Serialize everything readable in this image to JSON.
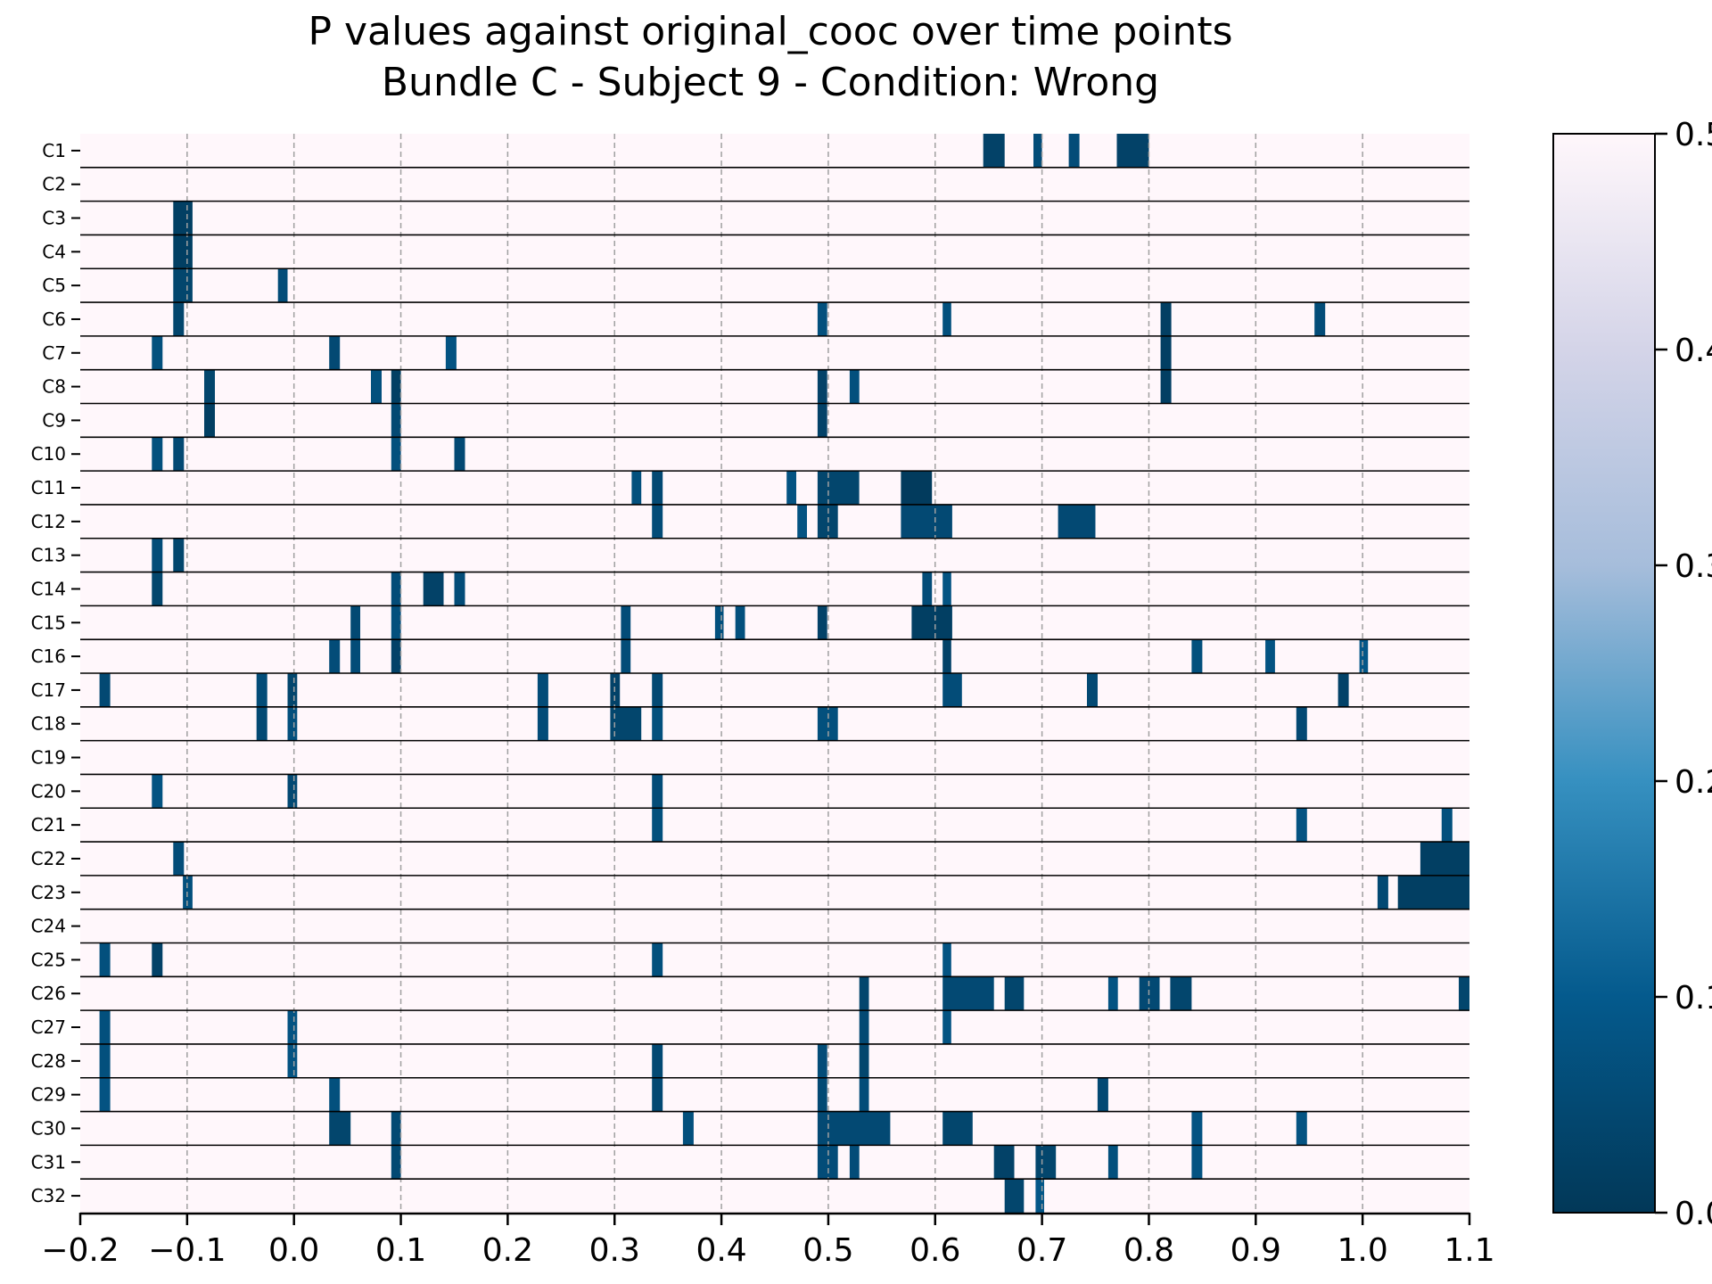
{
  "chart_data": {
    "type": "heatmap",
    "title_line1": "P values against original_cooc over time points",
    "title_line2": "Bundle C - Subject 9 - Condition: Wrong",
    "xlim": [
      -0.2,
      1.1
    ],
    "xticks": [
      "−0.2",
      "−0.1",
      "0.0",
      "0.1",
      "0.2",
      "0.3",
      "0.4",
      "0.5",
      "0.6",
      "0.7",
      "0.8",
      "0.9",
      "1.0",
      "1.1"
    ],
    "xtick_values": [
      -0.2,
      -0.1,
      0.0,
      0.1,
      0.2,
      0.3,
      0.4,
      0.5,
      0.6,
      0.7,
      0.8,
      0.9,
      1.0,
      1.1
    ],
    "grid": "vertical dashed at x ticks",
    "colorbar": {
      "colormap": "PuBu_r",
      "vmin": 0.0,
      "vmax": 0.5,
      "ticks": [
        "0.0",
        "0.1",
        "0.2",
        "0.3",
        "0.4",
        "0.5"
      ],
      "tick_values": [
        0.0,
        0.1,
        0.2,
        0.3,
        0.4,
        0.5
      ]
    },
    "rows": [
      {
        "label": "C1",
        "cells": [
          [
            0.645,
            0.665,
            0.03
          ],
          [
            0.692,
            0.7,
            0.06
          ],
          [
            0.725,
            0.735,
            0.06
          ],
          [
            0.77,
            0.8,
            0.03
          ]
        ]
      },
      {
        "label": "C2",
        "cells": []
      },
      {
        "label": "C3",
        "cells": [
          [
            -0.113,
            -0.095,
            0.02
          ]
        ]
      },
      {
        "label": "C4",
        "cells": [
          [
            -0.113,
            -0.095,
            0.02
          ]
        ]
      },
      {
        "label": "C5",
        "cells": [
          [
            -0.113,
            -0.095,
            0.04
          ],
          [
            -0.015,
            -0.006,
            0.06
          ]
        ]
      },
      {
        "label": "C6",
        "cells": [
          [
            -0.113,
            -0.103,
            0.04
          ],
          [
            0.49,
            0.499,
            0.07
          ],
          [
            0.607,
            0.615,
            0.07
          ],
          [
            0.811,
            0.821,
            0.02
          ],
          [
            0.955,
            0.965,
            0.06
          ]
        ]
      },
      {
        "label": "C7",
        "cells": [
          [
            -0.133,
            -0.123,
            0.07
          ],
          [
            0.033,
            0.043,
            0.05
          ],
          [
            0.142,
            0.152,
            0.08
          ],
          [
            0.811,
            0.821,
            0.02
          ]
        ]
      },
      {
        "label": "C8",
        "cells": [
          [
            -0.084,
            -0.074,
            0.04
          ],
          [
            0.072,
            0.082,
            0.07
          ],
          [
            0.091,
            0.1,
            0.02
          ],
          [
            0.49,
            0.499,
            0.03
          ],
          [
            0.52,
            0.529,
            0.07
          ],
          [
            0.811,
            0.821,
            0.02
          ]
        ]
      },
      {
        "label": "C9",
        "cells": [
          [
            -0.084,
            -0.074,
            0.02
          ],
          [
            0.091,
            0.1,
            0.05
          ],
          [
            0.49,
            0.499,
            0.03
          ]
        ]
      },
      {
        "label": "C10",
        "cells": [
          [
            -0.133,
            -0.123,
            0.07
          ],
          [
            -0.113,
            -0.103,
            0.05
          ],
          [
            0.091,
            0.1,
            0.07
          ],
          [
            0.15,
            0.16,
            0.05
          ]
        ]
      },
      {
        "label": "C11",
        "cells": [
          [
            0.316,
            0.325,
            0.07
          ],
          [
            0.335,
            0.345,
            0.05
          ],
          [
            0.461,
            0.47,
            0.08
          ],
          [
            0.49,
            0.529,
            0.04
          ],
          [
            0.568,
            0.597,
            0.01
          ]
        ]
      },
      {
        "label": "C12",
        "cells": [
          [
            0.335,
            0.345,
            0.06
          ],
          [
            0.471,
            0.48,
            0.08
          ],
          [
            0.49,
            0.509,
            0.04
          ],
          [
            0.568,
            0.616,
            0.05
          ],
          [
            0.715,
            0.75,
            0.05
          ]
        ]
      },
      {
        "label": "C13",
        "cells": [
          [
            -0.133,
            -0.123,
            0.06
          ],
          [
            -0.113,
            -0.103,
            0.04
          ]
        ]
      },
      {
        "label": "C14",
        "cells": [
          [
            -0.133,
            -0.123,
            0.04
          ],
          [
            0.091,
            0.1,
            0.06
          ],
          [
            0.121,
            0.14,
            0.03
          ],
          [
            0.15,
            0.16,
            0.06
          ],
          [
            0.588,
            0.597,
            0.06
          ],
          [
            0.607,
            0.615,
            0.08
          ]
        ]
      },
      {
        "label": "C15",
        "cells": [
          [
            0.053,
            0.062,
            0.05
          ],
          [
            0.091,
            0.1,
            0.07
          ],
          [
            0.306,
            0.315,
            0.06
          ],
          [
            0.394,
            0.402,
            0.07
          ],
          [
            0.413,
            0.422,
            0.07
          ],
          [
            0.49,
            0.499,
            0.03
          ],
          [
            0.578,
            0.616,
            0.02
          ]
        ]
      },
      {
        "label": "C16",
        "cells": [
          [
            0.033,
            0.043,
            0.06
          ],
          [
            0.053,
            0.062,
            0.06
          ],
          [
            0.091,
            0.1,
            0.03
          ],
          [
            0.306,
            0.315,
            0.06
          ],
          [
            0.607,
            0.615,
            0.03
          ],
          [
            0.84,
            0.85,
            0.07
          ],
          [
            0.909,
            0.918,
            0.08
          ],
          [
            0.997,
            1.005,
            0.09
          ]
        ]
      },
      {
        "label": "C17",
        "cells": [
          [
            -0.182,
            -0.172,
            0.05
          ],
          [
            -0.035,
            -0.025,
            0.06
          ],
          [
            -0.006,
            0.003,
            0.04
          ],
          [
            0.228,
            0.238,
            0.06
          ],
          [
            0.296,
            0.305,
            0.03
          ],
          [
            0.335,
            0.345,
            0.05
          ],
          [
            0.607,
            0.625,
            0.06
          ],
          [
            0.742,
            0.752,
            0.05
          ],
          [
            0.977,
            0.987,
            0.03
          ]
        ]
      },
      {
        "label": "C18",
        "cells": [
          [
            -0.035,
            -0.025,
            0.05
          ],
          [
            -0.006,
            0.003,
            0.07
          ],
          [
            0.228,
            0.238,
            0.06
          ],
          [
            0.296,
            0.325,
            0.04
          ],
          [
            0.335,
            0.345,
            0.07
          ],
          [
            0.49,
            0.509,
            0.07
          ],
          [
            0.938,
            0.948,
            0.05
          ]
        ]
      },
      {
        "label": "C19",
        "cells": []
      },
      {
        "label": "C20",
        "cells": [
          [
            -0.133,
            -0.123,
            0.08
          ],
          [
            -0.006,
            0.003,
            0.05
          ],
          [
            0.335,
            0.345,
            0.06
          ]
        ]
      },
      {
        "label": "C21",
        "cells": [
          [
            0.335,
            0.345,
            0.07
          ],
          [
            0.938,
            0.948,
            0.08
          ],
          [
            1.074,
            1.084,
            0.07
          ]
        ]
      },
      {
        "label": "C22",
        "cells": [
          [
            -0.113,
            -0.103,
            0.06
          ],
          [
            1.054,
            1.1,
            0.02
          ]
        ]
      },
      {
        "label": "C23",
        "cells": [
          [
            -0.104,
            -0.095,
            0.07
          ],
          [
            1.014,
            1.024,
            0.05
          ],
          [
            1.033,
            1.1,
            0.02
          ]
        ]
      },
      {
        "label": "C24",
        "cells": []
      },
      {
        "label": "C25",
        "cells": [
          [
            -0.182,
            -0.172,
            0.07
          ],
          [
            -0.133,
            -0.123,
            0.03
          ],
          [
            0.335,
            0.345,
            0.07
          ],
          [
            0.607,
            0.615,
            0.08
          ]
        ]
      },
      {
        "label": "C26",
        "cells": [
          [
            0.529,
            0.538,
            0.04
          ],
          [
            0.607,
            0.655,
            0.05
          ],
          [
            0.665,
            0.683,
            0.04
          ],
          [
            0.762,
            0.771,
            0.08
          ],
          [
            0.791,
            0.81,
            0.05
          ],
          [
            0.82,
            0.84,
            0.04
          ],
          [
            1.09,
            1.1,
            0.04
          ]
        ]
      },
      {
        "label": "C27",
        "cells": [
          [
            -0.182,
            -0.172,
            0.07
          ],
          [
            -0.006,
            0.003,
            0.08
          ],
          [
            0.529,
            0.538,
            0.05
          ],
          [
            0.607,
            0.615,
            0.08
          ]
        ]
      },
      {
        "label": "C28",
        "cells": [
          [
            -0.182,
            -0.172,
            0.07
          ],
          [
            -0.006,
            0.003,
            0.08
          ],
          [
            0.335,
            0.345,
            0.05
          ],
          [
            0.49,
            0.499,
            0.06
          ],
          [
            0.529,
            0.538,
            0.04
          ]
        ]
      },
      {
        "label": "C29",
        "cells": [
          [
            -0.182,
            -0.172,
            0.08
          ],
          [
            0.033,
            0.043,
            0.07
          ],
          [
            0.335,
            0.345,
            0.05
          ],
          [
            0.49,
            0.499,
            0.05
          ],
          [
            0.529,
            0.538,
            0.06
          ],
          [
            0.752,
            0.762,
            0.05
          ]
        ]
      },
      {
        "label": "C30",
        "cells": [
          [
            0.033,
            0.053,
            0.04
          ],
          [
            0.091,
            0.1,
            0.05
          ],
          [
            0.364,
            0.374,
            0.07
          ],
          [
            0.49,
            0.558,
            0.05
          ],
          [
            0.607,
            0.635,
            0.04
          ],
          [
            0.84,
            0.85,
            0.08
          ],
          [
            0.938,
            0.948,
            0.08
          ]
        ]
      },
      {
        "label": "C31",
        "cells": [
          [
            0.091,
            0.1,
            0.05
          ],
          [
            0.49,
            0.509,
            0.06
          ],
          [
            0.52,
            0.529,
            0.06
          ],
          [
            0.655,
            0.674,
            0.03
          ],
          [
            0.694,
            0.713,
            0.04
          ],
          [
            0.762,
            0.771,
            0.07
          ],
          [
            0.84,
            0.85,
            0.08
          ]
        ]
      },
      {
        "label": "C32",
        "cells": [
          [
            0.665,
            0.683,
            0.04
          ],
          [
            0.694,
            0.702,
            0.09
          ]
        ]
      }
    ]
  }
}
